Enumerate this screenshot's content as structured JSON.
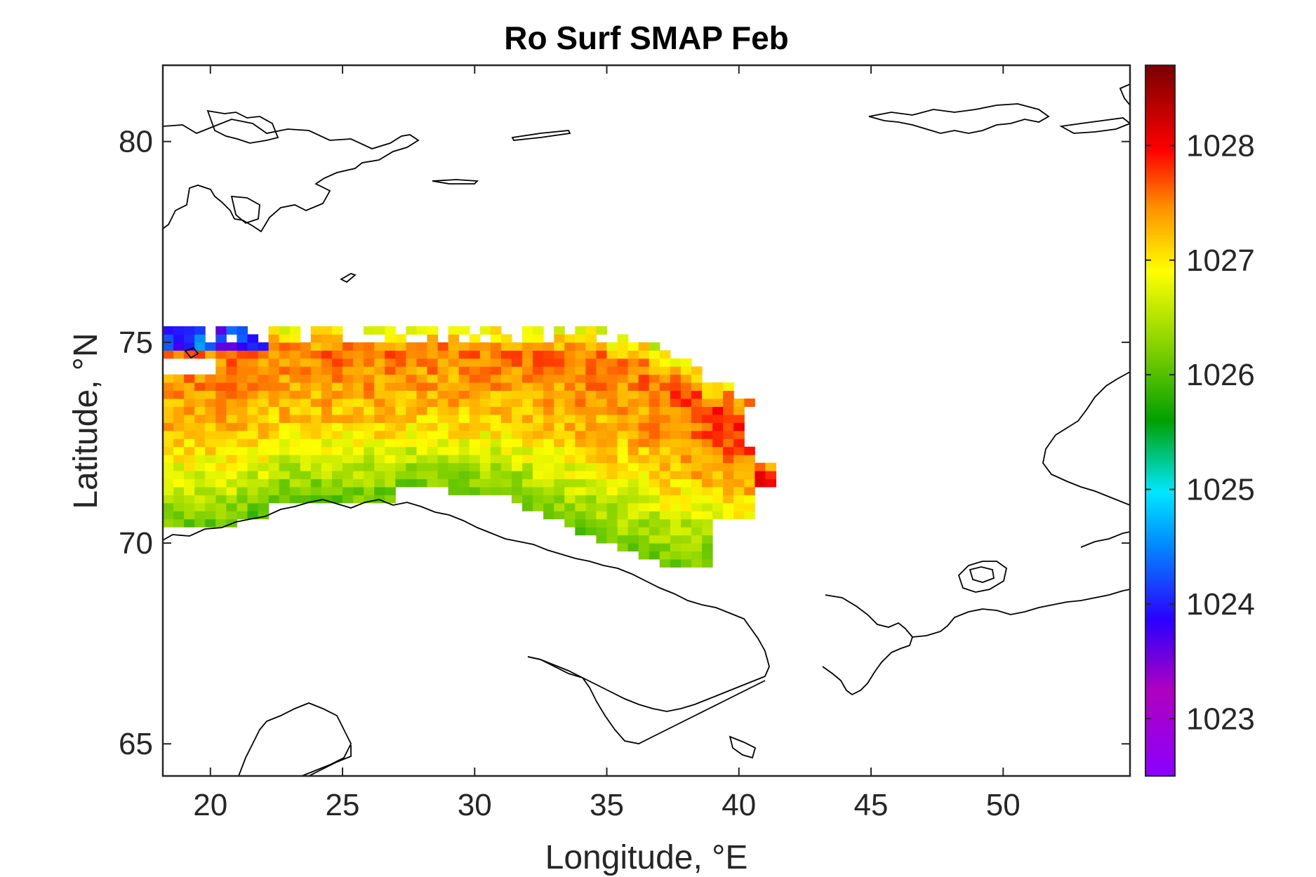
{
  "chart_data": {
    "type": "heatmap",
    "title": "Ro Surf SMAP Feb",
    "xlabel": "Longitude, °E",
    "ylabel": "Latitude, °N",
    "xlim": [
      18.2,
      54.8
    ],
    "ylim": [
      64.2,
      81.9
    ],
    "xticks": [
      20,
      25,
      30,
      35,
      40,
      45,
      50
    ],
    "yticks": [
      65,
      70,
      75,
      80
    ],
    "colorbar": {
      "range": [
        1022.5,
        1028.7
      ],
      "ticks": [
        1023,
        1024,
        1025,
        1026,
        1027,
        1028
      ],
      "colormap": [
        "#8a00ff",
        "#2a00ff",
        "#00c8ff",
        "#00a000",
        "#a8d800",
        "#ffff00",
        "#ff7b00",
        "#ff0000",
        "#7a0000"
      ]
    },
    "grid_resolution_deg": 0.4,
    "data_extent": {
      "lon": [
        18.2,
        41.2
      ],
      "lat": [
        69.4,
        75.5
      ]
    },
    "field_description_values": [
      {
        "region": "north edge lon 18-22",
        "value": 1023.8
      },
      {
        "region": "northern band",
        "value": 1027.5
      },
      {
        "region": "central band",
        "value": 1027.0
      },
      {
        "region": "southern coastal band",
        "value": 1026.2
      },
      {
        "region": "eastern edge",
        "value": 1028.3
      }
    ]
  }
}
